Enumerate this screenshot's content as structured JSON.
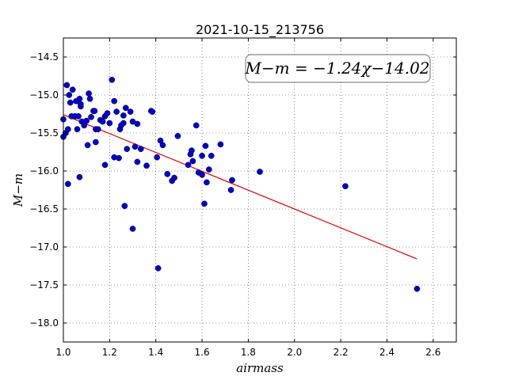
{
  "chart_data": {
    "type": "scatter",
    "title": "2021-10-15_213756",
    "xlabel": "airmass",
    "ylabel": "M−m",
    "xlim": [
      1.0,
      2.7
    ],
    "ylim": [
      -18.25,
      -14.25
    ],
    "y_inverted": true,
    "grid": true,
    "xticks": [
      "1.0",
      "1.2",
      "1.4",
      "1.6",
      "1.8",
      "2.0",
      "2.2",
      "2.4",
      "2.6"
    ],
    "yticks": [
      "−14.5",
      "−15.0",
      "−15.5",
      "−16.0",
      "−16.5",
      "−17.0",
      "−17.5",
      "−18.0"
    ],
    "annotation": "M−m = −1.24χ−14.02",
    "colors": {
      "points": "#0000cc",
      "fit": "#dd0000"
    },
    "fit_line": {
      "slope": -1.24,
      "intercept": -14.02,
      "x_range": [
        1.0,
        2.53
      ]
    },
    "points": [
      [
        1.0,
        -15.32
      ],
      [
        1.0,
        -15.55
      ],
      [
        1.01,
        -15.5
      ],
      [
        1.015,
        -14.87
      ],
      [
        1.02,
        -15.45
      ],
      [
        1.02,
        -16.17
      ],
      [
        1.025,
        -15.0
      ],
      [
        1.03,
        -15.1
      ],
      [
        1.035,
        -15.28
      ],
      [
        1.04,
        -14.93
      ],
      [
        1.05,
        -15.28
      ],
      [
        1.055,
        -15.08
      ],
      [
        1.06,
        -15.45
      ],
      [
        1.065,
        -15.28
      ],
      [
        1.07,
        -15.05
      ],
      [
        1.07,
        -16.08
      ],
      [
        1.075,
        -15.15
      ],
      [
        1.075,
        -15.12
      ],
      [
        1.08,
        -15.35
      ],
      [
        1.09,
        -15.4
      ],
      [
        1.1,
        -15.34
      ],
      [
        1.105,
        -15.66
      ],
      [
        1.11,
        -14.98
      ],
      [
        1.115,
        -15.05
      ],
      [
        1.12,
        -15.29
      ],
      [
        1.13,
        -15.21
      ],
      [
        1.135,
        -15.21
      ],
      [
        1.14,
        -15.45
      ],
      [
        1.15,
        -15.45
      ],
      [
        1.14,
        -15.62
      ],
      [
        1.16,
        -15.33
      ],
      [
        1.17,
        -15.35
      ],
      [
        1.18,
        -15.28
      ],
      [
        1.18,
        -15.92
      ],
      [
        1.19,
        -15.24
      ],
      [
        1.2,
        -15.37
      ],
      [
        1.21,
        -14.8
      ],
      [
        1.22,
        -15.82
      ],
      [
        1.22,
        -15.08
      ],
      [
        1.23,
        -15.22
      ],
      [
        1.24,
        -15.83
      ],
      [
        1.245,
        -15.45
      ],
      [
        1.25,
        -15.4
      ],
      [
        1.26,
        -15.27
      ],
      [
        1.26,
        -15.37
      ],
      [
        1.265,
        -16.46
      ],
      [
        1.27,
        -15.17
      ],
      [
        1.275,
        -15.71
      ],
      [
        1.29,
        -15.22
      ],
      [
        1.3,
        -15.35
      ],
      [
        1.3,
        -16.76
      ],
      [
        1.31,
        -15.68
      ],
      [
        1.32,
        -15.38
      ],
      [
        1.32,
        -15.88
      ],
      [
        1.335,
        -15.71
      ],
      [
        1.36,
        -15.93
      ],
      [
        1.38,
        -15.21
      ],
      [
        1.385,
        -15.22
      ],
      [
        1.405,
        -15.82
      ],
      [
        1.41,
        -17.28
      ],
      [
        1.42,
        -15.6
      ],
      [
        1.43,
        -15.66
      ],
      [
        1.45,
        -16.04
      ],
      [
        1.47,
        -16.13
      ],
      [
        1.48,
        -16.09
      ],
      [
        1.495,
        -15.54
      ],
      [
        1.54,
        -15.92
      ],
      [
        1.55,
        -15.78
      ],
      [
        1.555,
        -15.73
      ],
      [
        1.56,
        -15.87
      ],
      [
        1.575,
        -15.4
      ],
      [
        1.585,
        -16.02
      ],
      [
        1.6,
        -15.8
      ],
      [
        1.6,
        -16.05
      ],
      [
        1.61,
        -16.43
      ],
      [
        1.615,
        -15.67
      ],
      [
        1.62,
        -16.15
      ],
      [
        1.63,
        -15.98
      ],
      [
        1.64,
        -15.8
      ],
      [
        1.68,
        -15.65
      ],
      [
        1.725,
        -16.25
      ],
      [
        1.73,
        -16.12
      ],
      [
        1.85,
        -16.01
      ],
      [
        2.22,
        -16.2
      ],
      [
        2.53,
        -17.55
      ]
    ]
  }
}
